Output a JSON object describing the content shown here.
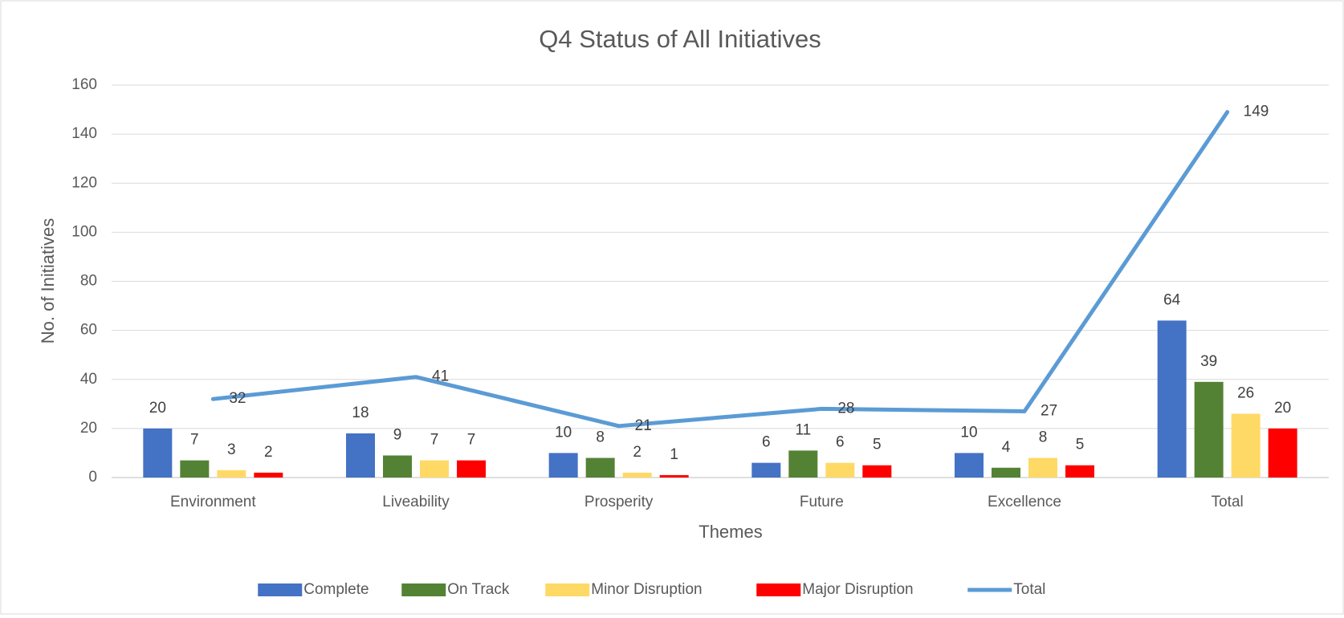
{
  "chart_data": {
    "type": "bar",
    "title": "Q4 Status of All Initiatives",
    "x_label": "Themes",
    "y_label": "No. of Initiatives",
    "categories": [
      "Environment",
      "Liveability",
      "Prosperity",
      "Future",
      "Excellence",
      "Total"
    ],
    "series": [
      {
        "name": "Complete",
        "color": "#4472c4",
        "values": [
          20,
          18,
          10,
          6,
          10,
          64
        ]
      },
      {
        "name": "On Track",
        "color": "#548235",
        "values": [
          7,
          9,
          8,
          11,
          4,
          39
        ]
      },
      {
        "name": "Minor Disruption",
        "color": "#ffd966",
        "values": [
          3,
          7,
          2,
          6,
          8,
          26
        ]
      },
      {
        "name": "Major Disruption",
        "color": "#ff0000",
        "values": [
          2,
          7,
          1,
          5,
          5,
          20
        ]
      },
      {
        "name": "Total",
        "type": "line",
        "color": "#5b9bd5",
        "values": [
          32,
          41,
          21,
          28,
          27,
          149
        ]
      }
    ],
    "ylim": [
      0,
      160
    ],
    "yticks": [
      0,
      20,
      40,
      60,
      80,
      100,
      120,
      140,
      160
    ],
    "grid": true,
    "legend": "bottom"
  }
}
